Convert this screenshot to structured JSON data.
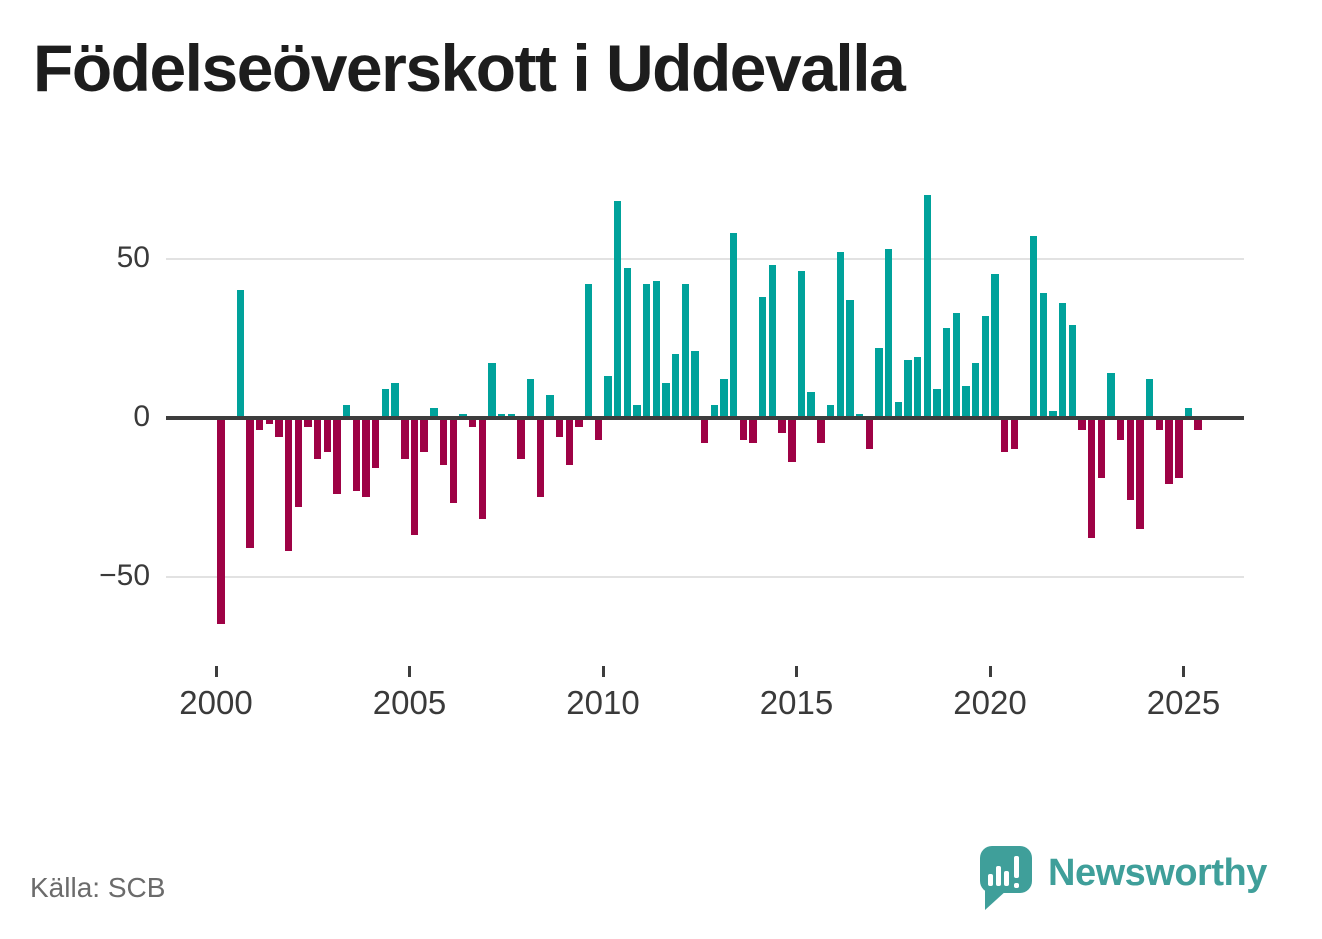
{
  "title": "Födelseöverskott i Uddevalla",
  "source": "Källa: SCB",
  "branding": {
    "name": "Newsworthy"
  },
  "chart_data": {
    "type": "bar",
    "title": "Födelseöverskott i Uddevalla",
    "period": "quarterly",
    "start_year": 2000,
    "start_quarter": 1,
    "end_label": "2025 Q2",
    "xlabel": "",
    "ylabel": "",
    "y_ticks": [
      50,
      0,
      -50
    ],
    "x_tick_years": [
      2000,
      2005,
      2010,
      2015,
      2020,
      2025
    ],
    "ylim": [
      -70,
      75
    ],
    "grid": true,
    "positive_color": "#00a29b",
    "negative_color": "#9e0245",
    "series": [
      {
        "name": "Födelseöverskott",
        "values": [
          -65,
          0,
          40,
          -41,
          -4,
          -2,
          -6,
          -42,
          -28,
          -3,
          -13,
          -11,
          -24,
          4,
          -23,
          -25,
          -16,
          9,
          11,
          -13,
          -37,
          -11,
          3,
          -15,
          -27,
          1,
          -3,
          -32,
          17,
          1,
          1,
          -13,
          12,
          -25,
          7,
          -6,
          -15,
          -3,
          42,
          -7,
          13,
          68,
          47,
          4,
          42,
          43,
          11,
          20,
          42,
          21,
          -8,
          4,
          12,
          58,
          -7,
          -8,
          38,
          48,
          -5,
          -14,
          46,
          8,
          -8,
          4,
          52,
          37,
          1,
          -10,
          22,
          53,
          5,
          18,
          19,
          70,
          9,
          28,
          33,
          10,
          17,
          32,
          45,
          -11,
          -10,
          0,
          57,
          39,
          2,
          36,
          29,
          -4,
          -38,
          -19,
          14,
          -7,
          -26,
          -35,
          12,
          -4,
          -21,
          -19,
          3,
          -4
        ]
      }
    ]
  }
}
